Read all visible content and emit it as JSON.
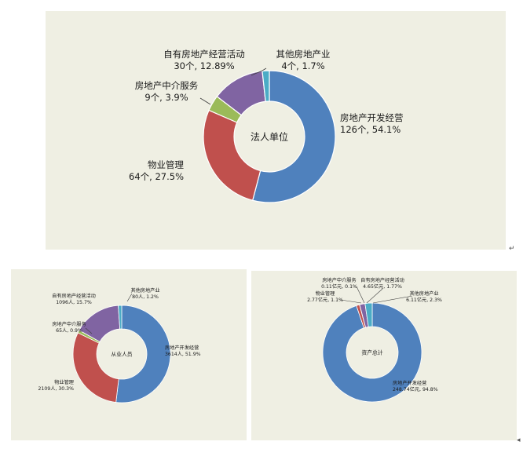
{
  "colors": {
    "panel_bg": "#efefe3",
    "blue": "#4f81bd",
    "red": "#c0504d",
    "green": "#9bbb59",
    "purple": "#8064a2",
    "cyan": "#4bacc6"
  },
  "chart_data": [
    {
      "type": "pie",
      "variant": "donut",
      "center_label": "法人单位",
      "start": "top",
      "direction": "clockwise",
      "slices": [
        {
          "name": "房地产开发经营",
          "value": 126,
          "value_label": "126个, 54.1%",
          "percent": 54.1,
          "color": "#4f81bd"
        },
        {
          "name": "物业管理",
          "value": 64,
          "value_label": "64个, 27.5%",
          "percent": 27.5,
          "color": "#c0504d"
        },
        {
          "name": "房地产中介服务",
          "value": 9,
          "value_label": "9个, 3.9%",
          "percent": 3.9,
          "color": "#9bbb59"
        },
        {
          "name": "自有房地产经营活动",
          "value": 30,
          "value_label": "30个, 12.89%",
          "percent": 12.89,
          "color": "#8064a2"
        },
        {
          "name": "其他房地产业",
          "value": 4,
          "value_label": "4个, 1.7%",
          "percent": 1.7,
          "color": "#4bacc6"
        }
      ]
    },
    {
      "type": "pie",
      "variant": "donut",
      "center_label": "从业人员",
      "start": "top",
      "direction": "clockwise",
      "slices": [
        {
          "name": "房地产开发经营",
          "value": 3614,
          "value_label": "3614人, 51.9%",
          "percent": 51.9,
          "color": "#4f81bd"
        },
        {
          "name": "物业管理",
          "value": 2109,
          "value_label": "2109人, 30.3%",
          "percent": 30.3,
          "color": "#c0504d"
        },
        {
          "name": "房地产中介服务",
          "value": 65,
          "value_label": "65人, 0.9%",
          "percent": 0.9,
          "color": "#9bbb59"
        },
        {
          "name": "自有房地产经营活动",
          "value": 1096,
          "value_label": "1096人, 15.7%",
          "percent": 15.7,
          "color": "#8064a2"
        },
        {
          "name": "其他房地产业",
          "value": 80,
          "value_label": "80人, 1.2%",
          "percent": 1.2,
          "color": "#4bacc6"
        }
      ]
    },
    {
      "type": "pie",
      "variant": "donut",
      "center_label": "资产总计",
      "start": "top",
      "direction": "clockwise",
      "slices": [
        {
          "name": "房地产开发经营",
          "value": 248.74,
          "value_label": "248.74亿元, 94.8%",
          "percent": 94.8,
          "color": "#4f81bd"
        },
        {
          "name": "物业管理",
          "value": 2.77,
          "value_label": "2.77亿元, 1.1%",
          "percent": 1.1,
          "color": "#c0504d"
        },
        {
          "name": "房地产中介服务",
          "value": 0.11,
          "value_label": "0.11亿元, 0.1%",
          "percent": 0.1,
          "color": "#9bbb59"
        },
        {
          "name": "自有房地产经营活动",
          "value": 4.65,
          "value_label": "4.65亿元, 1.77%",
          "percent": 1.77,
          "color": "#8064a2"
        },
        {
          "name": "其他房地产业",
          "value": 6.11,
          "value_label": "6.11亿元, 2.3%",
          "percent": 2.3,
          "color": "#4bacc6"
        }
      ]
    }
  ],
  "marks": {
    "return_mark": "↵",
    "corner_mark": "◂"
  }
}
